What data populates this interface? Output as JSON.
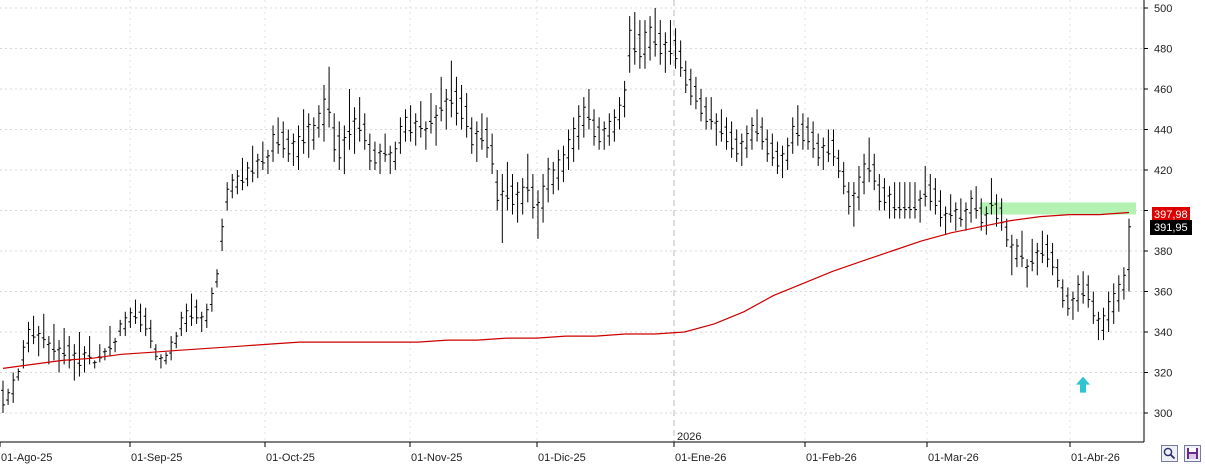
{
  "chart_data": {
    "type": "ohlc-bar",
    "grid": "horizontal-dashed",
    "ylim": [
      285,
      505
    ],
    "y_ticks": [
      300,
      320,
      340,
      360,
      380,
      400,
      420,
      440,
      460,
      480,
      500
    ],
    "x_labels": [
      "01-Ago-25",
      "01-Sep-25",
      "01-Oct-25",
      "01-Nov-25",
      "01-Dic-25",
      "01-Ene-26",
      "01-Feb-26",
      "01-Mar-26",
      "01-Abr-26"
    ],
    "year_label": "2026",
    "series": [
      {
        "name": "price",
        "note": "daily high/low bars, values in price units",
        "high": [
          316,
          312,
          320,
          322,
          336,
          345,
          348,
          343,
          349,
          338,
          344,
          336,
          342,
          338,
          334,
          340,
          333,
          338,
          326,
          334,
          332,
          343,
          337,
          346,
          350,
          352,
          356,
          354,
          352,
          346,
          334,
          329,
          330,
          338,
          340,
          350,
          354,
          359,
          356,
          350,
          354,
          362,
          371,
          396,
          414,
          418,
          420,
          426,
          424,
          432,
          428,
          434,
          430,
          442,
          446,
          444,
          440,
          438,
          442,
          450,
          448,
          446,
          452,
          462,
          471,
          448,
          444,
          442,
          460,
          451,
          456,
          448,
          438,
          434,
          433,
          438,
          432,
          434,
          446,
          450,
          452,
          448,
          454,
          444,
          458,
          452,
          466,
          460,
          474,
          466,
          462,
          458,
          446,
          444,
          448,
          446,
          438,
          420,
          418,
          424,
          418,
          414,
          416,
          428,
          418,
          410,
          418,
          426,
          424,
          430,
          432,
          440,
          446,
          452,
          456,
          460,
          450,
          446,
          444,
          448,
          450,
          456,
          464,
          496,
          498,
          494,
          494,
          496,
          500,
          494,
          488,
          494,
          490,
          484,
          474,
          470,
          466,
          460,
          456,
          456,
          448,
          450,
          446,
          444,
          440,
          438,
          442,
          446,
          450,
          446,
          440,
          438,
          434,
          432,
          436,
          446,
          452,
          448,
          446,
          444,
          438,
          436,
          440,
          440,
          430,
          424,
          414,
          414,
          422,
          428,
          436,
          428,
          418,
          416,
          412,
          414,
          414,
          414,
          414,
          414,
          410,
          422,
          418,
          416,
          410,
          402,
          408,
          404,
          406,
          404,
          410,
          412,
          406,
          402,
          416,
          408,
          406,
          396,
          388,
          386,
          390,
          376,
          386,
          384,
          390,
          388,
          384,
          376,
          366,
          362,
          360,
          368,
          370,
          368,
          360,
          350,
          352,
          360,
          364,
          368,
          372,
          396
        ],
        "low": [
          300,
          304,
          305,
          316,
          322,
          330,
          334,
          328,
          332,
          324,
          326,
          320,
          324,
          322,
          316,
          318,
          320,
          324,
          322,
          325,
          326,
          328,
          330,
          338,
          338,
          342,
          344,
          340,
          338,
          332,
          326,
          322,
          324,
          326,
          332,
          338,
          340,
          343,
          344,
          340,
          342,
          350,
          362,
          380,
          400,
          406,
          408,
          410,
          412,
          414,
          416,
          420,
          418,
          424,
          428,
          426,
          424,
          422,
          420,
          428,
          426,
          430,
          436,
          434,
          441,
          424,
          420,
          418,
          430,
          428,
          434,
          430,
          420,
          420,
          418,
          424,
          418,
          420,
          428,
          434,
          434,
          432,
          436,
          430,
          438,
          432,
          444,
          440,
          446,
          442,
          440,
          436,
          428,
          424,
          430,
          426,
          418,
          400,
          384,
          400,
          398,
          394,
          398,
          404,
          396,
          386,
          394,
          404,
          408,
          410,
          414,
          420,
          424,
          430,
          436,
          440,
          432,
          430,
          430,
          432,
          434,
          440,
          446,
          468,
          472,
          470,
          470,
          474,
          476,
          472,
          468,
          472,
          470,
          466,
          458,
          452,
          450,
          444,
          440,
          440,
          432,
          434,
          430,
          426,
          424,
          422,
          426,
          430,
          434,
          430,
          424,
          422,
          418,
          416,
          420,
          428,
          432,
          430,
          430,
          426,
          422,
          420,
          424,
          422,
          416,
          408,
          398,
          392,
          400,
          408,
          414,
          410,
          400,
          400,
          396,
          396,
          396,
          396,
          396,
          396,
          394,
          402,
          400,
          398,
          392,
          388,
          394,
          390,
          392,
          390,
          394,
          396,
          390,
          388,
          398,
          392,
          390,
          382,
          368,
          372,
          372,
          362,
          370,
          368,
          374,
          372,
          368,
          362,
          352,
          348,
          346,
          350,
          354,
          352,
          344,
          336,
          336,
          340,
          344,
          350,
          356,
          360
        ]
      },
      {
        "name": "moving-average",
        "color": "#cc0000",
        "values": [
          322,
          324,
          326,
          327,
          329,
          330,
          331,
          332,
          333,
          334,
          335,
          335,
          335,
          335,
          335,
          336,
          336,
          337,
          337,
          338,
          338,
          339,
          339,
          340,
          344,
          350,
          358,
          364,
          370,
          375,
          380,
          385,
          389,
          392,
          395,
          397,
          398,
          398,
          399
        ]
      }
    ],
    "price_labels": {
      "ma_value": "397,98",
      "last_value": "391,95",
      "last_close": 391.95,
      "ma_color": "#dd0000",
      "last_color": "#000000"
    },
    "annotations": {
      "resistance_zone": {
        "from": 398,
        "to": 404,
        "color": "#b4f2b4"
      },
      "arrow": {
        "direction": "up",
        "value": 313,
        "color": "#2ec4d0"
      }
    }
  },
  "controls": {
    "zoom_icon": "magnifier-icon",
    "save_icon": "floppy-disk-icon"
  }
}
